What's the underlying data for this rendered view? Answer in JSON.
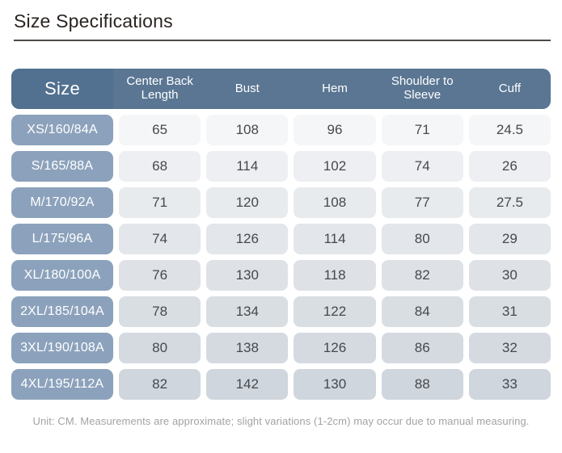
{
  "page": {
    "title": "Size Specifications",
    "footnote": "Unit: CM. Measurements are approximate; slight variations (1-2cm) may occur due to manual measuring."
  },
  "table": {
    "unit": "CM",
    "headers": [
      "Size",
      "Center Back Length",
      "Bust",
      "Hem",
      "Shoulder to Sleeve",
      "Cuff"
    ],
    "rows": [
      {
        "size": "XS/160/84A",
        "values": [
          "65",
          "108",
          "96",
          "71",
          "24.5"
        ]
      },
      {
        "size": "S/165/88A",
        "values": [
          "68",
          "114",
          "102",
          "74",
          "26"
        ]
      },
      {
        "size": "M/170/92A",
        "values": [
          "71",
          "120",
          "108",
          "77",
          "27.5"
        ]
      },
      {
        "size": "L/175/96A",
        "values": [
          "74",
          "126",
          "114",
          "80",
          "29"
        ]
      },
      {
        "size": "XL/180/100A",
        "values": [
          "76",
          "130",
          "118",
          "82",
          "30"
        ]
      },
      {
        "size": "2XL/185/104A",
        "values": [
          "78",
          "134",
          "122",
          "84",
          "31"
        ]
      },
      {
        "size": "3XL/190/108A",
        "values": [
          "80",
          "138",
          "126",
          "86",
          "32"
        ]
      },
      {
        "size": "4XL/195/112A",
        "values": [
          "82",
          "142",
          "130",
          "88",
          "33"
        ]
      }
    ]
  },
  "colors": {
    "header_bg": "#5a7693",
    "header_size_bg": "#52708f",
    "size_cell_bg": "#8ca2bc",
    "row_shades": [
      "#f5f6f8",
      "#edeff2",
      "#e8ebee",
      "#e3e6ea",
      "#dee2e7",
      "#d9dee3",
      "#d4dae0",
      "#d0d6dd"
    ],
    "title_color": "#2b2421",
    "divider_color": "#4f4a47",
    "footnote_color": "#a3a3a3",
    "data_text_color": "#45484c"
  }
}
